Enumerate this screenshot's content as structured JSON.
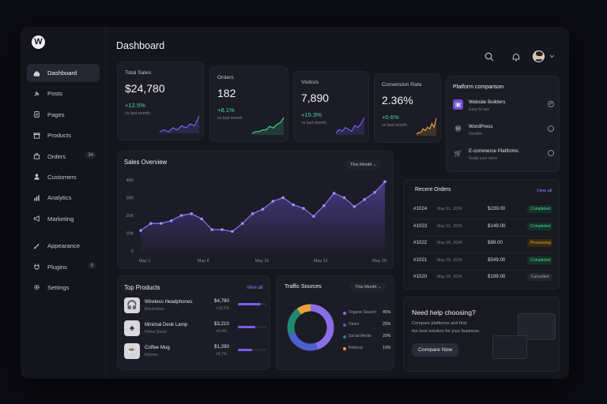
{
  "app": {
    "logo": "W"
  },
  "header": {
    "title": "Dashboard"
  },
  "sidebar": {
    "items": [
      {
        "label": "Dashboard",
        "icon": "home-icon",
        "active": true
      },
      {
        "label": "Posts",
        "icon": "pin-icon"
      },
      {
        "label": "Pages",
        "icon": "page-icon"
      },
      {
        "label": "Products",
        "icon": "box-icon"
      },
      {
        "label": "Orders",
        "icon": "bag-icon",
        "count": "34"
      },
      {
        "label": "Customers",
        "icon": "user-icon"
      },
      {
        "label": "Analytics",
        "icon": "bar-chart-icon"
      },
      {
        "label": "Marketing",
        "icon": "megaphone-icon"
      },
      {
        "label": "Appearance",
        "icon": "brush-icon"
      },
      {
        "label": "Plugins",
        "icon": "plug-icon",
        "count": "5"
      },
      {
        "label": "Settings",
        "icon": "gear-icon"
      }
    ]
  },
  "stats": [
    {
      "title": "Total Sales",
      "value": "$24,780",
      "change": "+12.5%",
      "sub": "vs last month",
      "color": "#7b5cf2",
      "trend": [
        4,
        5,
        4,
        6,
        5,
        7,
        6,
        8,
        7,
        12
      ]
    },
    {
      "title": "Orders",
      "value": "182",
      "change": "+8.1%",
      "sub": "vs last month",
      "color": "#3fcf8e",
      "trend": [
        3,
        4,
        4,
        5,
        5,
        7,
        6,
        8,
        9,
        12
      ]
    },
    {
      "title": "Visitors",
      "value": "7,890",
      "change": "+15.3%",
      "sub": "vs last month",
      "color": "#7b5cf2",
      "trend": [
        3,
        5,
        4,
        6,
        5,
        4,
        7,
        6,
        8,
        11
      ]
    },
    {
      "title": "Conversion Rate",
      "value": "2.36%",
      "change": "+0.6%",
      "sub": "vs last month",
      "color": "#e8a13a",
      "trend": [
        3,
        4,
        4,
        6,
        5,
        7,
        6,
        9,
        7,
        12
      ]
    }
  ],
  "platform": {
    "title": "Platform comparison",
    "items": [
      {
        "name": "Website Builders",
        "desc": "Easy to use",
        "checked": true
      },
      {
        "name": "WordPress",
        "desc": "Flexible",
        "checked": false
      },
      {
        "name": "E-commerce Platforms",
        "desc": "Scale your store",
        "checked": false
      }
    ]
  },
  "sales": {
    "title": "Sales Overview",
    "filter": "This Month",
    "chart_data": {
      "type": "area",
      "ylim": [
        0,
        40000
      ],
      "yticks": [
        "40K",
        "30K",
        "20K",
        "10K",
        "0"
      ],
      "xticks": [
        "May 1",
        "May 8",
        "May 15",
        "May 22",
        "May 29"
      ],
      "series": [
        {
          "values": [
            11500,
            15500,
            15500,
            17000,
            20000,
            21000,
            18000,
            12000,
            12000,
            11000,
            15500,
            21000,
            23500,
            28000,
            30000,
            26000,
            24000,
            19500,
            25500,
            32500,
            30000,
            25000,
            29000,
            33000,
            39000
          ]
        }
      ]
    }
  },
  "orders": {
    "title": "Recent Orders",
    "link": "View all",
    "rows": [
      {
        "id": "#1024",
        "date": "May 31, 2024",
        "amount": "$239.00",
        "status": "Completed"
      },
      {
        "id": "#1023",
        "date": "May 31, 2024",
        "amount": "$149.00",
        "status": "Completed"
      },
      {
        "id": "#1022",
        "date": "May 30, 2024",
        "amount": "$89.00",
        "status": "Processing"
      },
      {
        "id": "#1021",
        "date": "May 29, 2024",
        "amount": "$549.00",
        "status": "Completed"
      },
      {
        "id": "#1020",
        "date": "May 29, 2024",
        "amount": "$199.00",
        "status": "Cancelled"
      }
    ]
  },
  "products": {
    "title": "Top Products",
    "link": "View all",
    "items": [
      {
        "name": "Wireless Headphones",
        "category": "Electronics",
        "price": "$4,780",
        "change": "+10.2%",
        "fill": 0.8,
        "icon": "headphones-icon"
      },
      {
        "name": "Minimal Desk Lamp",
        "category": "Home Decor",
        "price": "$3,210",
        "change": "+6.4%",
        "fill": 0.62,
        "icon": "lamp-icon"
      },
      {
        "name": "Coffee Mug",
        "category": "Kitchen",
        "price": "$1,290",
        "change": "+5.7%",
        "fill": 0.5,
        "icon": "mug-icon"
      }
    ]
  },
  "traffic": {
    "title": "Traffic Sources",
    "filter": "This Month",
    "chart_data": {
      "type": "pie",
      "series": [
        {
          "name": "Organic Search",
          "value": 45,
          "label": "45%",
          "color": "#8a6ee8"
        },
        {
          "name": "Direct",
          "value": 25,
          "label": "25%",
          "color": "#4c5fd0"
        },
        {
          "name": "Social Media",
          "value": 20,
          "label": "20%",
          "color": "#1f8a72"
        },
        {
          "name": "Referral",
          "value": 10,
          "label": "10%",
          "color": "#e8a13a"
        }
      ]
    }
  },
  "help": {
    "title": "Need help choosing?",
    "text1": "Compare platforms and find",
    "text2": "the best solution for your business.",
    "button": "Compare Now"
  },
  "colors": {
    "accent": "#7b5cf2",
    "success": "#3fcf8e",
    "warning": "#e8a13a"
  }
}
